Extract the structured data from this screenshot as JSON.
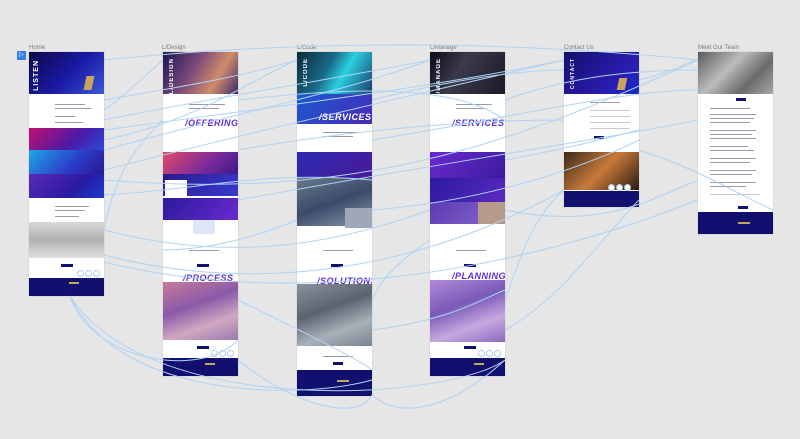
{
  "frames": [
    {
      "id": "home",
      "label": "Home",
      "hero_word": "LISTEN",
      "section_word": ""
    },
    {
      "id": "design",
      "label": "L/Design",
      "hero_word": "L/DESIGN",
      "section_word": "/PROCESS",
      "offering_word": "/OFFERING"
    },
    {
      "id": "code",
      "label": "L/Code",
      "hero_word": "L/CODE",
      "section_word": "/SOLUTIONS",
      "offering_word": "/SERVICES"
    },
    {
      "id": "manage",
      "label": "L/Manage",
      "hero_word": "L/MANAGE",
      "section_word": "/PLANNING",
      "offering_word": "/SERVICES"
    },
    {
      "id": "contact",
      "label": "Contact Us",
      "hero_word": "CONTACT",
      "section_word": ""
    },
    {
      "id": "team",
      "label": "Meet Our Team",
      "hero_word": "",
      "section_word": ""
    }
  ],
  "start_marker": "▷",
  "colors": {
    "navy": "#12106e",
    "purple": "#5a2bd6",
    "gold": "#c8a55c",
    "link": "#aed3f5",
    "canvas": "#e6e6e6"
  }
}
